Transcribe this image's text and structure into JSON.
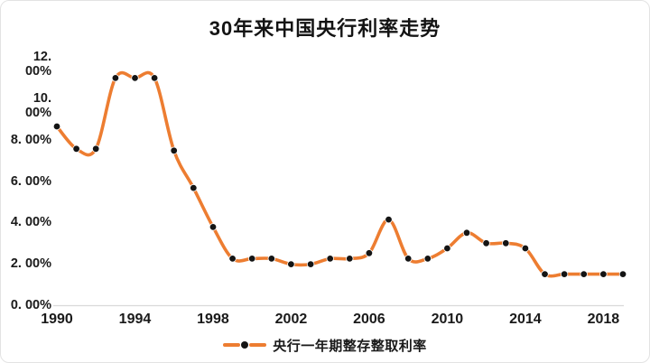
{
  "title": "30年来中国央行利率走势",
  "legend": {
    "label": "央行一年期整存整取利率"
  },
  "colors": {
    "line": "#ED7D31",
    "marker": "#141414",
    "axis_line": "#d9d9d9",
    "text": "#1a1a1a"
  },
  "y_axis": {
    "tick_labels": [
      "0. 00%",
      "2. 00%",
      "4. 00%",
      "6. 00%",
      "8. 00%",
      "10. 00%",
      "12. 00%"
    ],
    "tick_values": [
      0,
      2,
      4,
      6,
      8,
      10,
      12
    ]
  },
  "x_axis": {
    "tick_labels": [
      "1990",
      "1994",
      "1998",
      "2002",
      "2006",
      "2010",
      "2014",
      "2018"
    ],
    "tick_values": [
      1990,
      1994,
      1998,
      2002,
      2006,
      2010,
      2014,
      2018
    ]
  },
  "chart_data": {
    "type": "line",
    "title": "30年来中国央行利率走势",
    "smooth": true,
    "marker": "circle",
    "grid": false,
    "legend_position": "bottom",
    "ylim": [
      0,
      12
    ],
    "y_unit": "percent",
    "series": [
      {
        "name": "央行一年期整存整取利率",
        "x": [
          1990,
          1991,
          1992,
          1993,
          1994,
          1995,
          1996,
          1997,
          1998,
          1999,
          2000,
          2001,
          2002,
          2003,
          2004,
          2005,
          2006,
          2007,
          2008,
          2009,
          2010,
          2011,
          2012,
          2013,
          2014,
          2015,
          2016,
          2017,
          2018,
          2019
        ],
        "values": [
          8.64,
          7.56,
          7.56,
          10.98,
          10.98,
          10.98,
          7.47,
          5.67,
          3.78,
          2.25,
          2.25,
          2.25,
          1.98,
          1.98,
          2.25,
          2.25,
          2.52,
          4.14,
          2.25,
          2.25,
          2.75,
          3.5,
          3.0,
          3.0,
          2.75,
          1.5,
          1.5,
          1.5,
          1.5,
          1.5
        ]
      }
    ]
  }
}
